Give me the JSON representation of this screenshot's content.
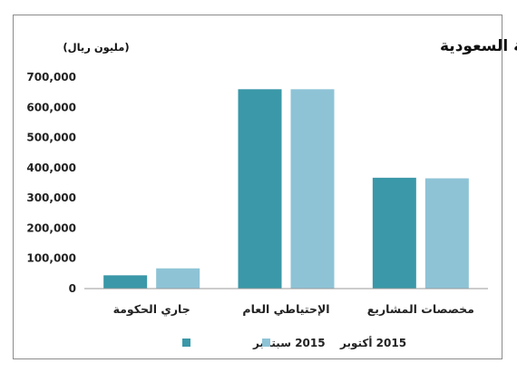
{
  "chart_data": {
    "type": "bar",
    "title": "مكونات ودائع وإحتياطي الحكومة السعودية",
    "subtitle": "(مليون ريال)",
    "categories": [
      "جاري الحكومة",
      "الإحتياطي العام",
      "مخصصات المشاريع"
    ],
    "series": [
      {
        "name": "2015 سبتمبر",
        "values": [
          44000,
          660000,
          367000
        ],
        "color": "#3a98a8"
      },
      {
        "name": "2015 أكتوبر",
        "values": [
          67000,
          660000,
          365000
        ],
        "color": "#8ec3d6"
      }
    ],
    "yticks": [
      "0",
      "100,000",
      "200,000",
      "300,000",
      "400,000",
      "500,000",
      "600,000",
      "700,000"
    ],
    "ylim": [
      0,
      700000
    ],
    "grid": false,
    "legend_position": "bottom"
  }
}
